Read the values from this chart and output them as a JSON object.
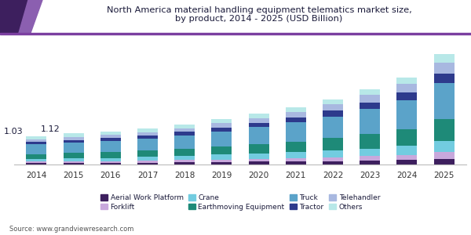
{
  "title": "North America material handling equipment telematics market size,\nby product, 2014 - 2025 (USD Billion)",
  "years": [
    2014,
    2015,
    2016,
    2017,
    2018,
    2019,
    2020,
    2021,
    2022,
    2023,
    2024,
    2025
  ],
  "categories": [
    "Aerial Work Platform",
    "Forklift",
    "Crane",
    "Earthmoving Equipment",
    "Truck",
    "Tractor",
    "Telehandler",
    "Others"
  ],
  "colors": [
    "#3d1f5e",
    "#c8a8dc",
    "#72cce0",
    "#1e8a78",
    "#5ba3c9",
    "#2d3a8c",
    "#a8b8e0",
    "#b8e8e8"
  ],
  "data": {
    "Aerial Work Platform": [
      0.05,
      0.06,
      0.06,
      0.07,
      0.08,
      0.09,
      0.1,
      0.11,
      0.12,
      0.14,
      0.16,
      0.2
    ],
    "Forklift": [
      0.05,
      0.06,
      0.06,
      0.07,
      0.08,
      0.09,
      0.1,
      0.12,
      0.14,
      0.16,
      0.19,
      0.25
    ],
    "Crane": [
      0.1,
      0.11,
      0.12,
      0.13,
      0.15,
      0.18,
      0.2,
      0.22,
      0.25,
      0.28,
      0.32,
      0.4
    ],
    "Earthmoving Equipment": [
      0.18,
      0.2,
      0.22,
      0.24,
      0.27,
      0.3,
      0.34,
      0.38,
      0.44,
      0.52,
      0.61,
      0.78
    ],
    "Truck": [
      0.35,
      0.37,
      0.4,
      0.43,
      0.48,
      0.54,
      0.61,
      0.69,
      0.78,
      0.9,
      1.04,
      1.3
    ],
    "Tractor": [
      0.08,
      0.09,
      0.1,
      0.11,
      0.12,
      0.14,
      0.16,
      0.18,
      0.21,
      0.24,
      0.28,
      0.36
    ],
    "Telehandler": [
      0.09,
      0.1,
      0.11,
      0.12,
      0.13,
      0.15,
      0.17,
      0.2,
      0.23,
      0.27,
      0.31,
      0.4
    ],
    "Others": [
      0.13,
      0.13,
      0.13,
      0.13,
      0.14,
      0.15,
      0.16,
      0.17,
      0.19,
      0.21,
      0.24,
      0.31
    ]
  },
  "annotations": {
    "2014": "1.03",
    "2015": "1.12"
  },
  "source": "Source: www.grandviewresearch.com",
  "background_color": "#ffffff",
  "plot_bg_color": "#ffffff",
  "bar_width": 0.55,
  "title_color": "#1a1a3a",
  "accent_bar_color": "#6a3a9a",
  "accent_triangle_color": "#3d1f5e"
}
